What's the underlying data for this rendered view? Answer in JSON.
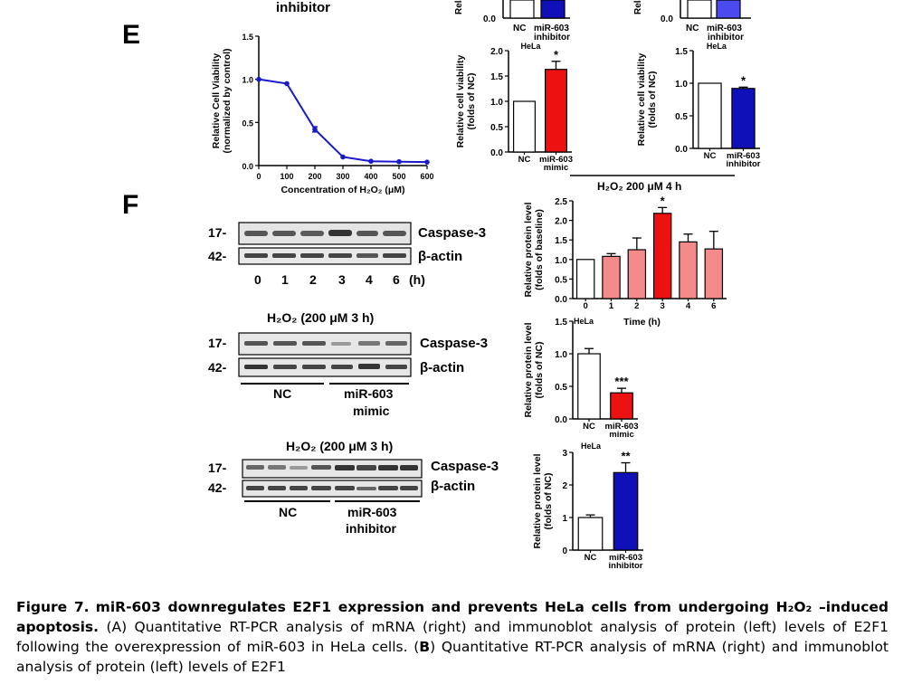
{
  "panel_letters": {
    "e": "E",
    "f": "F"
  },
  "top_fragment": {
    "inhibitor_label": "inhibitor",
    "left_bar_ytick": "0.0",
    "left_bar_cats": [
      "NC",
      "miR-603",
      "inhibitor"
    ],
    "right_bar_ytick": "0.0",
    "right_bar_cats": [
      "NC",
      "miR-603",
      "inhibitor"
    ],
    "cut_ylabel_left": "Rela",
    "cut_ylabel_right": "Rela"
  },
  "h2o2_header": "H₂O₂ 200 μM 4 h",
  "blots": {
    "b1": {
      "band1": "Caspase-3",
      "band2": "β-actin",
      "mw1": "17-",
      "mw2": "42-",
      "lanes": [
        "0",
        "1",
        "2",
        "3",
        "4",
        "6"
      ],
      "unit": "(h)"
    },
    "b2": {
      "title": "H₂O₂ (200 μM  3 h)",
      "band1": "Caspase-3",
      "band2": "β-actin",
      "mw1": "17-",
      "mw2": "42-",
      "group1": "NC",
      "group2_line1": "miR-603",
      "group2_line2": "mimic"
    },
    "b3": {
      "title": "H₂O₂ (200 μM  3 h)",
      "band1": "Caspase-3",
      "band2": "β-actin",
      "mw1": "17-",
      "mw2": "42-",
      "group1": "NC",
      "group2_line1": "miR-603",
      "group2_line2": "inhibitor"
    }
  },
  "caption": {
    "figure_label": "Figure 7.",
    "title": "miR-603 downregulates E2F1 expression and prevents HeLa cells from undergoing H₂O₂ –induced apoptosis.",
    "text_a": "(A) Quantitative RT-PCR analysis of mRNA (right) and immunoblot analysis of protein (left) levels of E2F1 following the overexpression of miR-603 in HeLa cells. (",
    "b_letter": "B",
    "text_b": ") Quantitative RT-PCR analysis of mRNA (right) and immunoblot analysis of protein (left) levels of E2F1"
  },
  "chart_data": [
    {
      "id": "viability_line",
      "type": "line",
      "xlabel": "Concentration of H₂O₂ (μM)",
      "ylabel_line1": "Relative Cell Viability",
      "ylabel_line2": "(normalized by control)",
      "xlim": [
        0,
        600
      ],
      "ylim": [
        0,
        1.5
      ],
      "xticks": [
        "0",
        "100",
        "200",
        "300",
        "400",
        "500",
        "600"
      ],
      "yticks": [
        "0.0",
        "0.5",
        "1.0",
        "1.5"
      ],
      "x": [
        0,
        100,
        200,
        300,
        400,
        500,
        600
      ],
      "y": [
        1.0,
        0.95,
        0.42,
        0.1,
        0.05,
        0.045,
        0.04
      ],
      "err": [
        0,
        0,
        0.03,
        0,
        0,
        0,
        0
      ],
      "color": "#1a1acc"
    },
    {
      "id": "viability_mimic",
      "type": "bar",
      "subtitle": "HeLa",
      "ylabel_line1": "Relative cell viability",
      "ylabel_line2": "(folds of NC)",
      "ylim": [
        0,
        2.0
      ],
      "yticks": [
        "0.0",
        "0.5",
        "1.0",
        "1.5",
        "2.0"
      ],
      "categories": [
        "NC",
        "miR-603|mimic"
      ],
      "values": [
        1.0,
        1.63
      ],
      "err": [
        0,
        0.16
      ],
      "colors": [
        "#ffffff",
        "#ee1111"
      ],
      "annotations": [
        "",
        "*"
      ]
    },
    {
      "id": "viability_inhibitor",
      "type": "bar",
      "subtitle": "HeLa",
      "ylabel_line1": "Relative cell viability",
      "ylabel_line2": "(folds of NC)",
      "ylim": [
        0,
        1.5
      ],
      "yticks": [
        "0.0",
        "0.5",
        "1.0",
        "1.5"
      ],
      "categories": [
        "NC",
        "miR-603|inhibitor"
      ],
      "values": [
        1.0,
        0.92
      ],
      "err": [
        0,
        0.02
      ],
      "colors": [
        "#ffffff",
        "#1010b8"
      ],
      "annotations": [
        "",
        "*"
      ]
    },
    {
      "id": "protein_time",
      "type": "bar",
      "subtitle": "HeLa",
      "xlabel": "Time (h)",
      "ylabel_line1": "Relative protein level",
      "ylabel_line2": "(folds of baseline)",
      "ylim": [
        0,
        2.5
      ],
      "yticks": [
        "0.0",
        "0.5",
        "1.0",
        "1.5",
        "2.0",
        "2.5"
      ],
      "categories": [
        "0",
        "1",
        "2",
        "3",
        "4",
        "6"
      ],
      "values": [
        1.0,
        1.08,
        1.25,
        2.18,
        1.45,
        1.27
      ],
      "err": [
        0,
        0.07,
        0.3,
        0.15,
        0.2,
        0.45
      ],
      "colors": [
        "#ffffff",
        "#f58a8a",
        "#f58a8a",
        "#ee1111",
        "#f58a8a",
        "#f58a8a"
      ],
      "annotations": [
        "",
        "",
        "",
        "*",
        "",
        ""
      ]
    },
    {
      "id": "protein_mimic",
      "type": "bar",
      "ylabel_line1": "Relative protein level",
      "ylabel_line2": "(folds of NC)",
      "ylim": [
        0,
        1.5
      ],
      "yticks": [
        "0.0",
        "0.5",
        "1.0",
        "1.5"
      ],
      "categories": [
        "NC",
        "miR-603|mimic"
      ],
      "values": [
        1.0,
        0.4
      ],
      "err": [
        0.08,
        0.07
      ],
      "colors": [
        "#ffffff",
        "#ee1111"
      ],
      "annotations": [
        "",
        "***"
      ]
    },
    {
      "id": "protein_inhibitor",
      "type": "bar",
      "subtitle": "HeLa",
      "ylabel_line1": "Relative protein level",
      "ylabel_line2": "(folds of NC)",
      "ylim": [
        0,
        3
      ],
      "yticks": [
        "0",
        "1",
        "2",
        "3"
      ],
      "categories": [
        "NC",
        "miR-603|inhibitor"
      ],
      "values": [
        1.0,
        2.38
      ],
      "err": [
        0.08,
        0.3
      ],
      "colors": [
        "#ffffff",
        "#1010b8"
      ],
      "annotations": [
        "",
        "**"
      ]
    }
  ]
}
